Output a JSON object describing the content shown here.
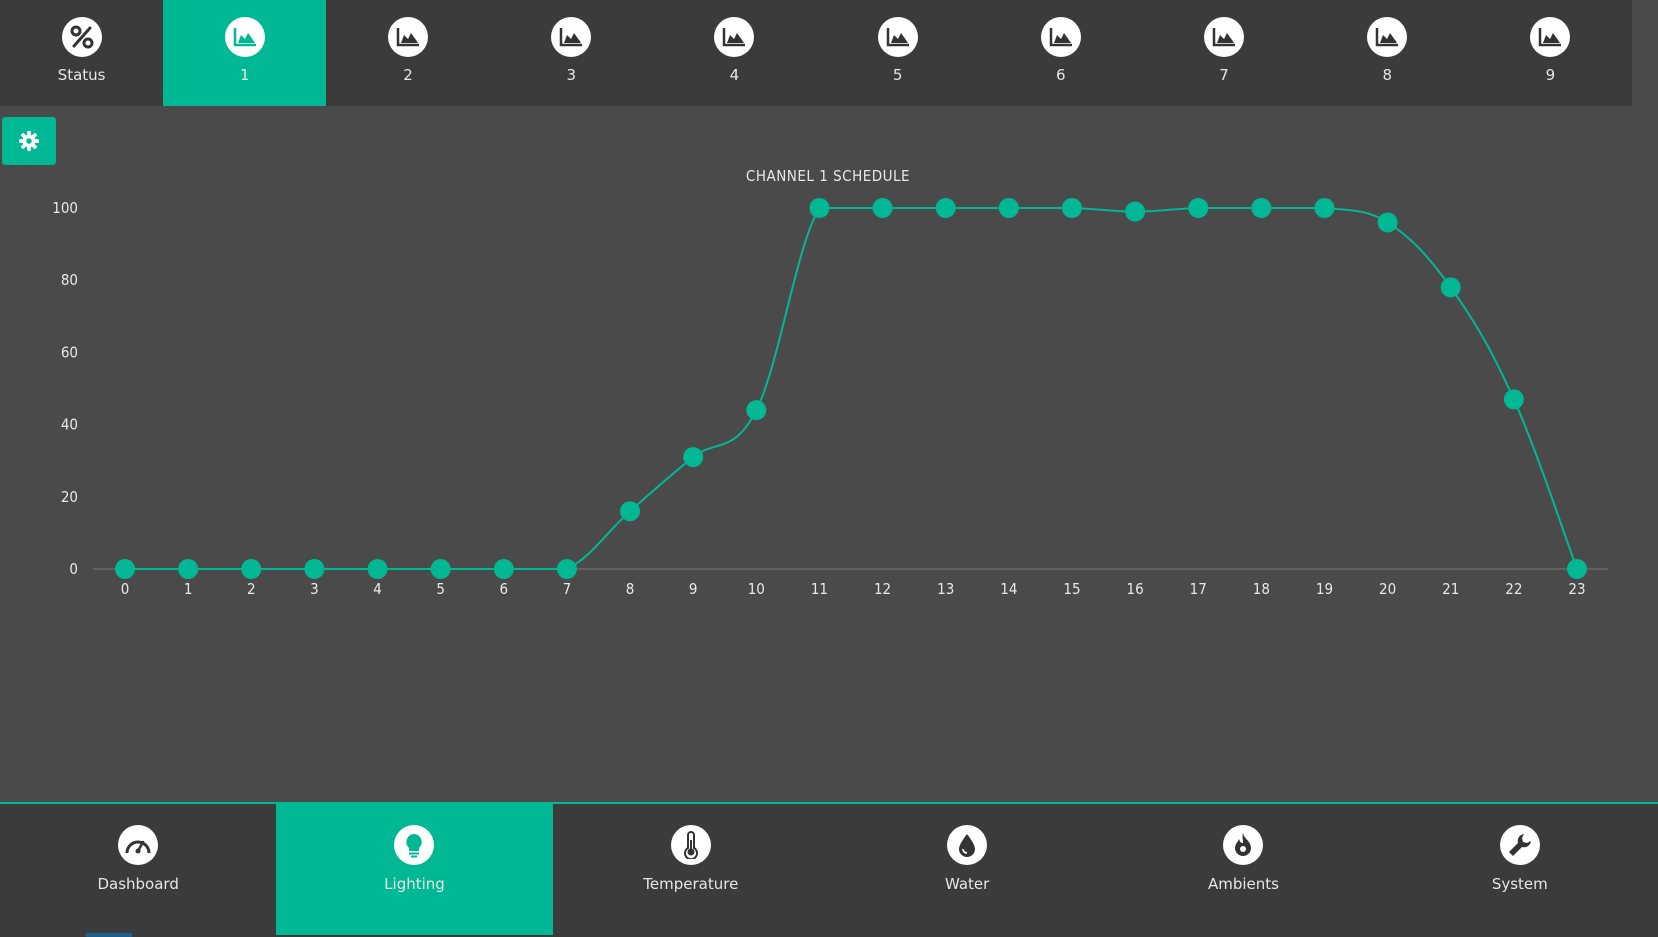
{
  "top_tabs": [
    {
      "label": "Status",
      "icon": "percent-icon",
      "active": false
    },
    {
      "label": "1",
      "icon": "area-chart-icon",
      "active": true
    },
    {
      "label": "2",
      "icon": "area-chart-icon",
      "active": false
    },
    {
      "label": "3",
      "icon": "area-chart-icon",
      "active": false
    },
    {
      "label": "4",
      "icon": "area-chart-icon",
      "active": false
    },
    {
      "label": "5",
      "icon": "area-chart-icon",
      "active": false
    },
    {
      "label": "6",
      "icon": "area-chart-icon",
      "active": false
    },
    {
      "label": "7",
      "icon": "area-chart-icon",
      "active": false
    },
    {
      "label": "8",
      "icon": "area-chart-icon",
      "active": false
    },
    {
      "label": "9",
      "icon": "area-chart-icon",
      "active": false
    }
  ],
  "settings_icon": "gear-icon",
  "colors": {
    "accent": "#00b894",
    "background": "#4a4a4a",
    "nav": "#3b3b3b"
  },
  "chart_data": {
    "type": "line",
    "title": "CHANNEL 1 SCHEDULE",
    "x": [
      0,
      1,
      2,
      3,
      4,
      5,
      6,
      7,
      8,
      9,
      10,
      11,
      12,
      13,
      14,
      15,
      16,
      17,
      18,
      19,
      20,
      21,
      22,
      23
    ],
    "values": [
      0,
      0,
      0,
      0,
      0,
      0,
      0,
      0,
      16,
      31,
      44,
      100,
      100,
      100,
      100,
      100,
      99,
      100,
      100,
      100,
      96,
      78,
      47,
      0
    ],
    "xlim": [
      0,
      23
    ],
    "ylim": [
      0,
      100
    ],
    "yticks": [
      0,
      20,
      40,
      60,
      80,
      100
    ],
    "grid": false
  },
  "bottom_tabs": [
    {
      "label": "Dashboard",
      "icon": "dashboard-gauge-icon",
      "active": false
    },
    {
      "label": "Lighting",
      "icon": "lightbulb-icon",
      "active": true
    },
    {
      "label": "Temperature",
      "icon": "thermometer-icon",
      "active": false
    },
    {
      "label": "Water",
      "icon": "water-drop-icon",
      "active": false
    },
    {
      "label": "Ambients",
      "icon": "flame-icon",
      "active": false
    },
    {
      "label": "System",
      "icon": "wrench-icon",
      "active": false
    }
  ]
}
